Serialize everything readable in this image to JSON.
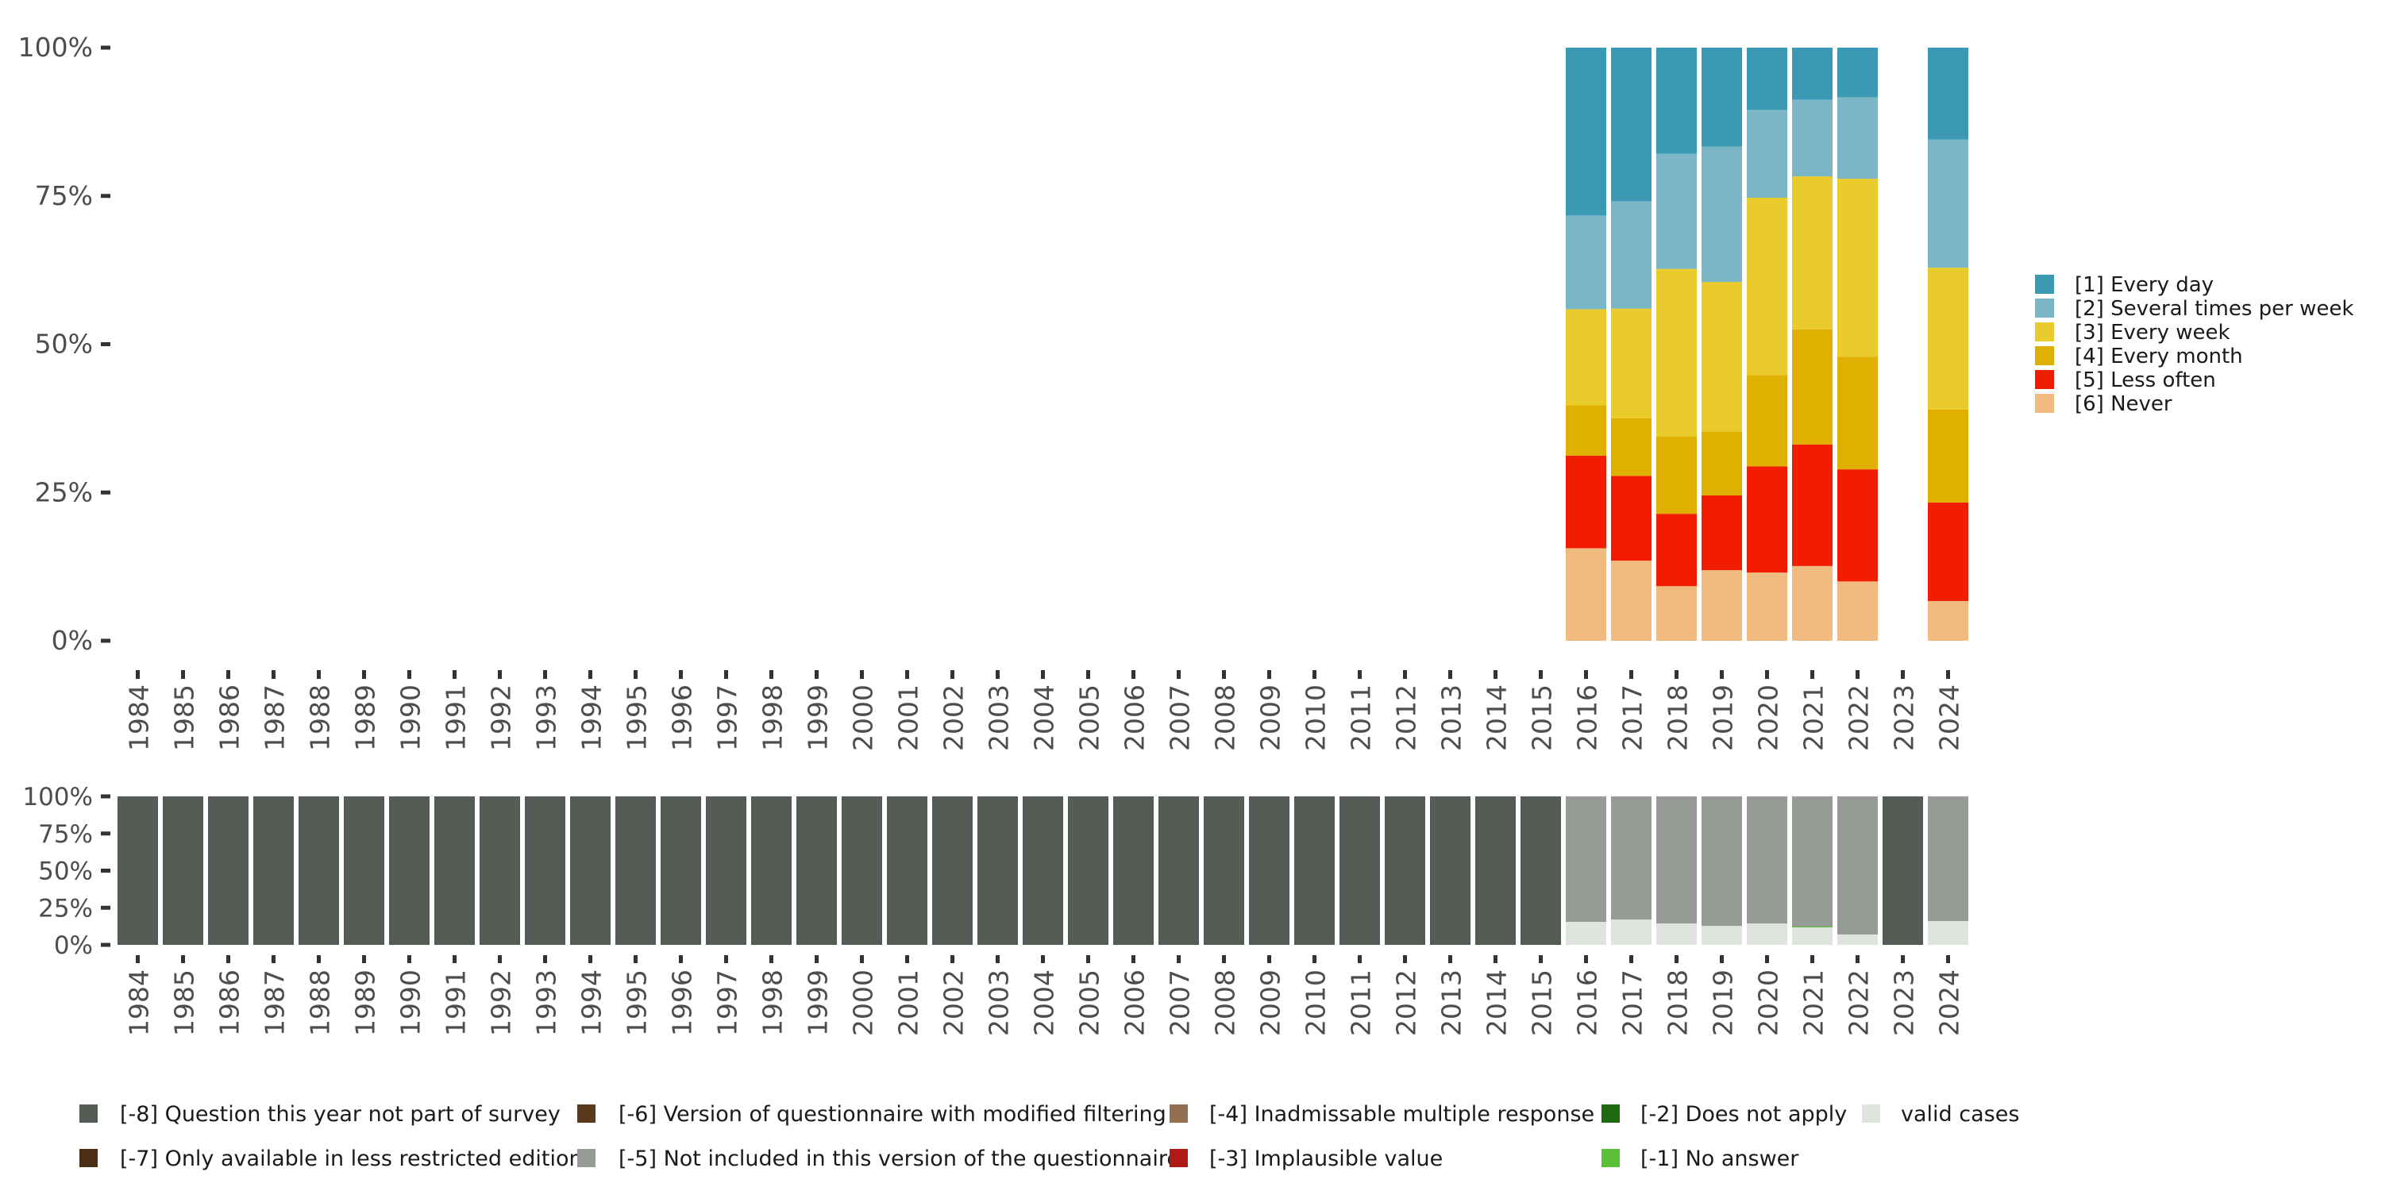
{
  "chart_data": [
    {
      "type": "bar",
      "stacked": true,
      "normalized": true,
      "title": "",
      "xlabel": "",
      "ylabel": "",
      "ylim": [
        0,
        100
      ],
      "y_ticks": [
        "0%",
        "25%",
        "50%",
        "75%",
        "100%"
      ],
      "y_tick_values": [
        0,
        25,
        50,
        75,
        100
      ],
      "categories": [
        "1984",
        "1985",
        "1986",
        "1987",
        "1988",
        "1989",
        "1990",
        "1991",
        "1992",
        "1993",
        "1994",
        "1995",
        "1996",
        "1997",
        "1998",
        "1999",
        "2000",
        "2001",
        "2002",
        "2003",
        "2004",
        "2005",
        "2006",
        "2007",
        "2008",
        "2009",
        "2010",
        "2011",
        "2012",
        "2013",
        "2014",
        "2015",
        "2016",
        "2017",
        "2018",
        "2019",
        "2020",
        "2021",
        "2022",
        "2023",
        "2024"
      ],
      "legend_position": "right",
      "series": [
        {
          "name": "[1] Every day",
          "color": "#3c99b3",
          "values": {
            "2016": 28.3,
            "2017": 25.9,
            "2018": 17.9,
            "2019": 16.7,
            "2020": 10.5,
            "2021": 8.8,
            "2022": 8.4,
            "2024": 15.5
          }
        },
        {
          "name": "[2] Several times per week",
          "color": "#7ab6c6",
          "values": {
            "2016": 15.8,
            "2017": 18.1,
            "2018": 19.4,
            "2019": 22.8,
            "2020": 14.8,
            "2021": 12.9,
            "2022": 13.7,
            "2024": 21.6
          }
        },
        {
          "name": "[3] Every week",
          "color": "#eacb2c",
          "values": {
            "2016": 16.2,
            "2017": 18.5,
            "2018": 28.3,
            "2019": 25.2,
            "2020": 29.9,
            "2021": 25.8,
            "2022": 30.0,
            "2024": 23.9
          }
        },
        {
          "name": "[4] Every month",
          "color": "#e0b000",
          "values": {
            "2016": 8.5,
            "2017": 9.7,
            "2018": 13.0,
            "2019": 10.8,
            "2020": 15.4,
            "2021": 19.4,
            "2022": 19.0,
            "2024": 15.7
          }
        },
        {
          "name": "[5] Less often",
          "color": "#f21c00",
          "values": {
            "2016": 15.6,
            "2017": 14.3,
            "2018": 12.2,
            "2019": 12.6,
            "2020": 17.9,
            "2021": 20.5,
            "2022": 18.9,
            "2024": 16.6
          }
        },
        {
          "name": "[6] Never",
          "color": "#f1bb7f",
          "values": {
            "2016": 15.6,
            "2017": 13.5,
            "2018": 9.2,
            "2019": 11.9,
            "2020": 11.5,
            "2021": 12.6,
            "2022": 10.0,
            "2024": 6.7
          }
        }
      ]
    },
    {
      "type": "bar",
      "stacked": true,
      "normalized": true,
      "title": "",
      "xlabel": "",
      "ylabel": "",
      "ylim": [
        0,
        100
      ],
      "y_ticks": [
        "0%",
        "25%",
        "50%",
        "75%",
        "100%"
      ],
      "y_tick_values": [
        0,
        25,
        50,
        75,
        100
      ],
      "categories": [
        "1984",
        "1985",
        "1986",
        "1987",
        "1988",
        "1989",
        "1990",
        "1991",
        "1992",
        "1993",
        "1994",
        "1995",
        "1996",
        "1997",
        "1998",
        "1999",
        "2000",
        "2001",
        "2002",
        "2003",
        "2004",
        "2005",
        "2006",
        "2007",
        "2008",
        "2009",
        "2010",
        "2011",
        "2012",
        "2013",
        "2014",
        "2015",
        "2016",
        "2017",
        "2018",
        "2019",
        "2020",
        "2021",
        "2022",
        "2023",
        "2024"
      ],
      "legend_position": "bottom",
      "series": [
        {
          "name": "valid cases",
          "color": "#e0e4df",
          "values": {
            "2016": 15.5,
            "2017": 17.1,
            "2018": 14.4,
            "2019": 12.8,
            "2020": 14.4,
            "2021": 11.8,
            "2022": 7.0,
            "2024": 16.0
          }
        },
        {
          "name": "[-1] No answer",
          "color": "#5ac03a",
          "values": {
            "2021": 0.5
          }
        },
        {
          "name": "[-2] Does not apply",
          "color": "#1e6b12",
          "values": {}
        },
        {
          "name": "[-3] Implausible value",
          "color": "#b01a15",
          "values": {}
        },
        {
          "name": "[-4] Inadmissable multiple response",
          "color": "#957050",
          "values": {}
        },
        {
          "name": "[-5] Not included in this version of the questionnaire",
          "color": "#979b95",
          "values": {
            "2016": 84.5,
            "2017": 82.9,
            "2018": 85.6,
            "2019": 87.2,
            "2020": 85.6,
            "2021": 87.7,
            "2022": 93.0,
            "2024": 84.0
          }
        },
        {
          "name": "[-6] Version of questionnaire with modified filtering",
          "color": "#5a3a1a",
          "values": {}
        },
        {
          "name": "[-7] Only available in less restricted edition",
          "color": "#4a2e16",
          "values": {}
        },
        {
          "name": "[-8] Question this year not part of survey",
          "color": "#555c55",
          "values": {
            "1984": 100,
            "1985": 100,
            "1986": 100,
            "1987": 100,
            "1988": 100,
            "1989": 100,
            "1990": 100,
            "1991": 100,
            "1992": 100,
            "1993": 100,
            "1994": 100,
            "1995": 100,
            "1996": 100,
            "1997": 100,
            "1998": 100,
            "1999": 100,
            "2000": 100,
            "2001": 100,
            "2002": 100,
            "2003": 100,
            "2004": 100,
            "2005": 100,
            "2006": 100,
            "2007": 100,
            "2008": 100,
            "2009": 100,
            "2010": 100,
            "2011": 100,
            "2012": 100,
            "2013": 100,
            "2014": 100,
            "2015": 100,
            "2023": 100
          }
        }
      ]
    }
  ],
  "legend_top": [
    {
      "label": "[1] Every day",
      "color": "#3c99b3"
    },
    {
      "label": "[2] Several times per week",
      "color": "#7ab6c6"
    },
    {
      "label": "[3] Every week",
      "color": "#eacb2c"
    },
    {
      "label": "[4] Every month",
      "color": "#e0b000"
    },
    {
      "label": "[5] Less often",
      "color": "#f21c00"
    },
    {
      "label": "[6] Never",
      "color": "#f1bb7f"
    }
  ],
  "legend_bottom": [
    {
      "label": "[-8] Question this year not part of survey",
      "color": "#555c55"
    },
    {
      "label": "[-7] Only available in less restricted edition",
      "color": "#4a2e16"
    },
    {
      "label": "[-6] Version of questionnaire with modified filtering",
      "color": "#5a3a1a"
    },
    {
      "label": "[-5] Not included in this version of the questionnaire",
      "color": "#979b95"
    },
    {
      "label": "[-4] Inadmissable multiple response",
      "color": "#957050"
    },
    {
      "label": "[-3] Implausible value",
      "color": "#b01a15"
    },
    {
      "label": "[-2] Does not apply",
      "color": "#1e6b12"
    },
    {
      "label": "[-1] No answer",
      "color": "#5ac03a"
    },
    {
      "label": "valid cases",
      "color": "#e0e4df"
    }
  ]
}
